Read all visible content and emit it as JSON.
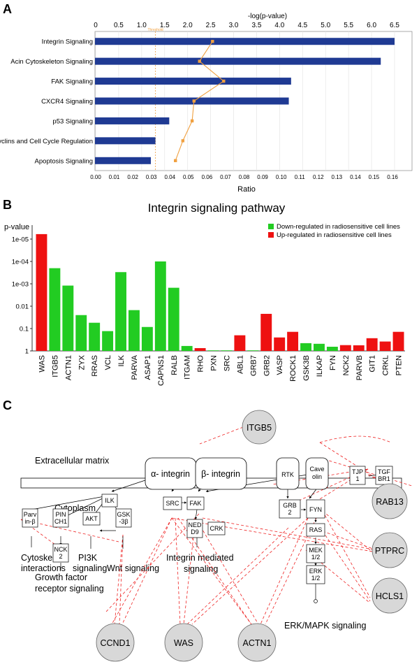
{
  "panels": {
    "a": "A",
    "b": "B",
    "c": "C"
  },
  "chart_data": [
    {
      "type": "bar",
      "orientation": "horizontal",
      "x2label": "-log(p-value)",
      "xlabel": "Ratio",
      "threshold_label": "Threshold",
      "categories": [
        "Integrin Signaling",
        "Acin Cytoskeleton Signaling",
        "FAK Signaling",
        "CXCR4 Signaling",
        "p53 Signaling",
        "Cyclins and Cell Cycle Regulation",
        "Apoptosis Signaling"
      ],
      "series": [
        {
          "axis": "top",
          "values": [
            6.5,
            6.2,
            4.25,
            4.2,
            1.6,
            1.3,
            1.2
          ]
        },
        {
          "axis": "bottom",
          "type": "line",
          "values": [
            0.063,
            0.056,
            0.069,
            0.053,
            0.052,
            0.047,
            0.043
          ]
        }
      ],
      "threshold": 1.3,
      "top_ticks": [
        "0",
        "0.5",
        "1.0",
        "1.5",
        "2.0",
        "2.5",
        "3.0",
        "3.5",
        "4.0",
        "4.5",
        "5.0",
        "5.5",
        "6.0",
        "6.5"
      ],
      "bottom_ticks": [
        "0.00",
        "0.01",
        "0.02",
        "0.03",
        "0.04",
        "0.05",
        "0.06",
        "0.07",
        "0.08",
        "0.09",
        "0.10",
        "0.11",
        "0.12",
        "0.13",
        "0.14",
        "0.15",
        "0.16"
      ],
      "xlim_top": [
        0,
        6.5
      ],
      "xlim_bottom": [
        0,
        0.165
      ],
      "grid": true,
      "colors": {
        "bar": "#1f3a93",
        "line": "#f0a040",
        "threshold": "#f0a040"
      }
    },
    {
      "type": "bar",
      "title": "Integrin signaling pathway",
      "ylabel": "p-value",
      "yscale": "log",
      "ytick_labels": [
        "1e-05",
        "1e-04",
        "1e-03",
        "0.01",
        "0.1",
        "1"
      ],
      "categories": [
        "WAS",
        "ITGB5",
        "ACTN1",
        "ZYX",
        "RRAS",
        "VCL",
        "ILK",
        "PARVA",
        "ASAP1",
        "CAPNS1",
        "RALB",
        "ITGAM",
        "RHO",
        "PXN",
        "SRC",
        "ABL1",
        "GRB7",
        "GRB2",
        "VASP",
        "ROCK1",
        "GSK3B",
        "ILKAP",
        "FYN",
        "NCK2",
        "PARVB",
        "GIT1",
        "CRKL",
        "PTEN"
      ],
      "values": [
        6e-06,
        0.0002,
        0.0012,
        0.025,
        0.055,
        0.13,
        0.0003,
        0.015,
        0.085,
        0.0001,
        0.0015,
        0.6,
        0.75,
        0.95,
        0.95,
        0.2,
        1,
        0.022,
        0.25,
        0.14,
        0.45,
        0.48,
        0.65,
        0.55,
        0.56,
        0.27,
        0.38,
        0.14
      ],
      "regulation": [
        "up",
        "down",
        "down",
        "down",
        "down",
        "down",
        "down",
        "down",
        "down",
        "down",
        "down",
        "down",
        "up",
        "down",
        "down",
        "up",
        "down",
        "up",
        "up",
        "up",
        "down",
        "down",
        "down",
        "up",
        "up",
        "up",
        "up",
        "up"
      ],
      "legend": [
        {
          "key": "down",
          "label": "Down-regulated in radiosensitive cell lines",
          "color": "#22cc22"
        },
        {
          "key": "up",
          "label": "Up-regulated in radiosensitive cell lines",
          "color": "#ee1111"
        }
      ],
      "legend_position": "top-right"
    }
  ],
  "diagram": {
    "labels": {
      "ecm": "Extracellular matrix",
      "cytoplasm": "Cytoplasm",
      "cyto_inter": [
        "Cytoskeletal",
        "interactions"
      ],
      "gf": [
        "Growth factor",
        "receptor signaling"
      ],
      "pi3k": [
        "PI3K",
        "signaling"
      ],
      "wnt": "Wnt signaling",
      "integrin_sig": [
        "Integrin mediated",
        "signaling"
      ],
      "erk_sig": "ERK/MAPK signaling"
    },
    "membrane_boxes": {
      "alpha": "α- integrin",
      "beta": "β- integrin",
      "rtk": "RTK",
      "caveolin": [
        "Cave",
        "olin"
      ],
      "tjp": [
        "TJP",
        "1"
      ],
      "tgf": [
        "TGF",
        "BR1"
      ]
    },
    "nodes": {
      "ilk": "ILK",
      "parv": [
        "Parv",
        "in-β"
      ],
      "pin": [
        "PIN",
        "CH1"
      ],
      "akt": "AKT",
      "gsk": [
        "GSK",
        "-3β"
      ],
      "nck": [
        "NCK",
        "2"
      ],
      "src": "SRC",
      "fak": "FAK",
      "nedd": [
        "NED",
        "D9"
      ],
      "crk": "CRK",
      "grb": [
        "GRB",
        "2"
      ],
      "fyn": "FYN",
      "ras": "RAS",
      "mek": [
        "MEK",
        "1/2"
      ],
      "erk": [
        "ERK",
        "1/2"
      ]
    },
    "circles": {
      "itgb5": "ITGB5",
      "rab13": "RAB13",
      "ptprc": "PTPRC",
      "hcls1": "HCLS1",
      "ccnd1": "CCND1",
      "was": "WAS",
      "actn1": "ACTN1"
    },
    "colors": {
      "circle": "#d8d8d8",
      "dashed": "#ee2222"
    }
  }
}
